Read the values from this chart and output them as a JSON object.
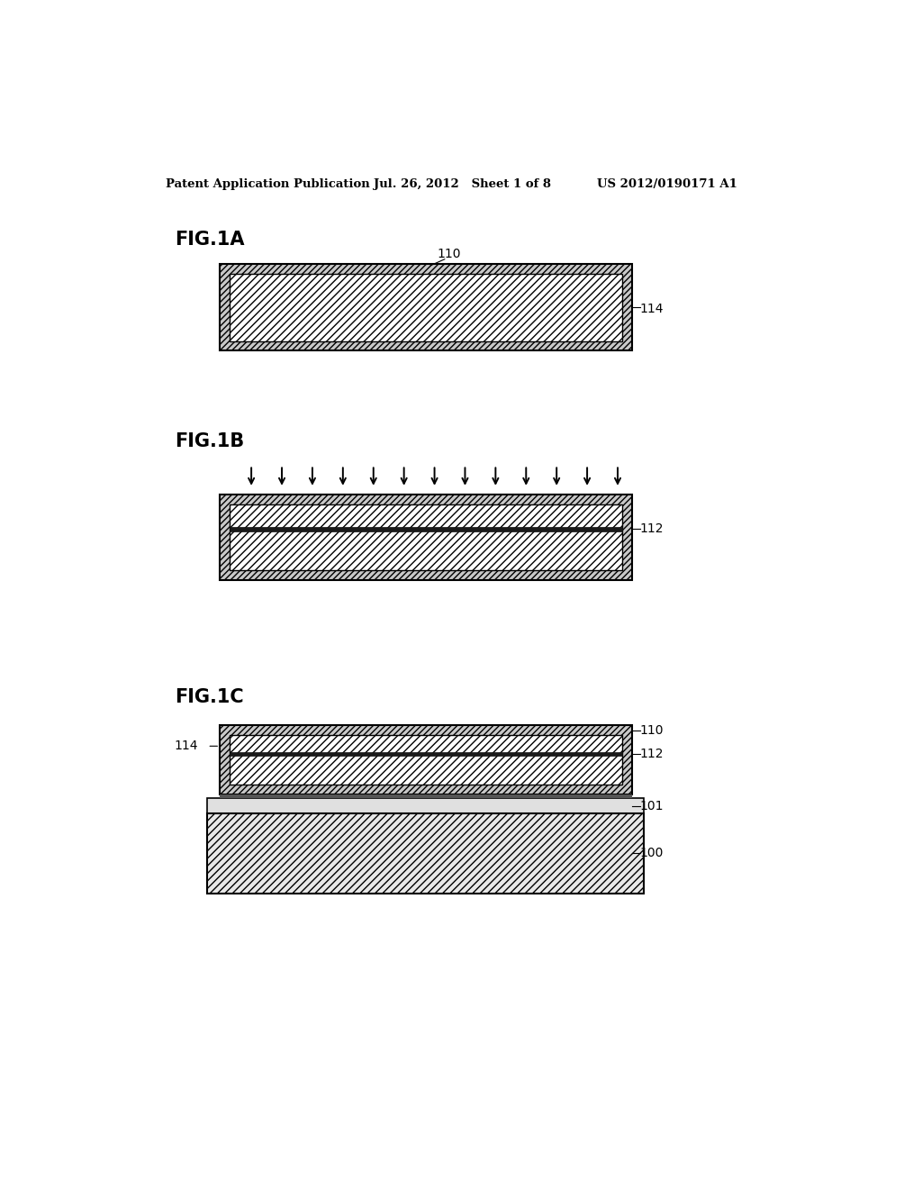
{
  "bg_color": "#ffffff",
  "header_left": "Patent Application Publication",
  "header_mid": "Jul. 26, 2012   Sheet 1 of 8",
  "header_right": "US 2012/0190171 A1",
  "fig1a_label": "FIG.1A",
  "fig1b_label": "FIG.1B",
  "fig1c_label": "FIG.1C",
  "label_110": "110",
  "label_114_1a": "114",
  "label_112": "112",
  "label_114_1c": "114",
  "label_110_1c": "110",
  "label_112_1c": "112",
  "label_101": "101",
  "label_100": "100"
}
